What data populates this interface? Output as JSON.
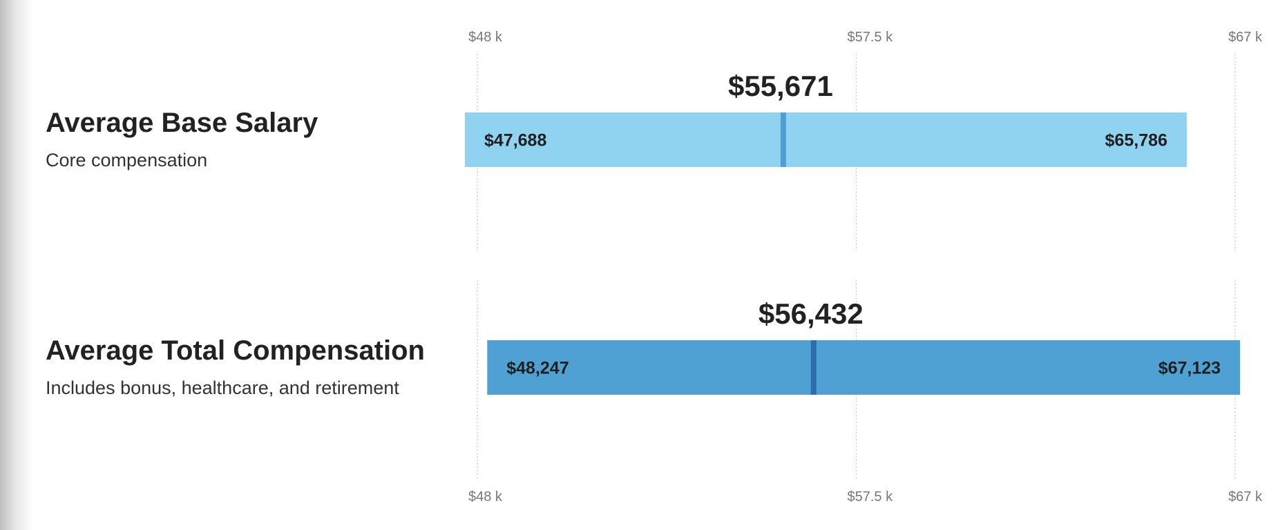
{
  "chart_data": {
    "type": "range-bar",
    "axis": {
      "min": 48000,
      "max": 67000,
      "ticks": [
        {
          "value": 48000,
          "label": "$48 k"
        },
        {
          "value": 57500,
          "label": "$57.5 k"
        },
        {
          "value": 67000,
          "label": "$67 k"
        }
      ],
      "grid": true
    },
    "rows": [
      {
        "title": "Average Base Salary",
        "subtitle": "Core compensation",
        "low": 47688,
        "high": 65786,
        "average": 55671,
        "low_label": "$47,688",
        "high_label": "$65,786",
        "average_label": "$55,671",
        "bar_color": "#8fd3f0",
        "marker_color": "#4f9fd6"
      },
      {
        "title": "Average Total Compensation",
        "subtitle": "Includes bonus, healthcare, and retirement",
        "low": 48247,
        "high": 67123,
        "average": 56432,
        "low_label": "$48,247",
        "high_label": "$67,123",
        "average_label": "$56,432",
        "bar_color": "#4fa1d4",
        "marker_color": "#2e6eae"
      }
    ]
  }
}
